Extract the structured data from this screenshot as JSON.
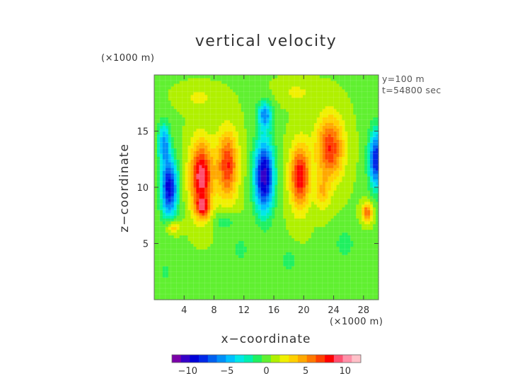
{
  "chart_data": {
    "type": "heatmap",
    "title": "vertical velocity",
    "xlabel": "x−coordinate",
    "ylabel": "z−coordinate",
    "x_unit": "(×1000 m)",
    "y_unit": "(×1000 m)",
    "annotations": [
      "y=100 m",
      "t=54800 sec"
    ],
    "xlim": [
      0,
      30
    ],
    "ylim": [
      0,
      20
    ],
    "x_ticks": [
      4,
      8,
      12,
      16,
      20,
      24,
      28
    ],
    "y_ticks": [
      5,
      10,
      15
    ],
    "colorbar": {
      "range": [
        -12,
        12
      ],
      "ticks": [
        -10,
        -5,
        0,
        5,
        10
      ],
      "tick_labels": [
        "−10",
        "−5",
        "0",
        "5",
        "10"
      ],
      "colors": [
        "#7a00a8",
        "#3500c8",
        "#0000d8",
        "#0028e8",
        "#0060f0",
        "#0090f8",
        "#00c0ff",
        "#00e8e8",
        "#00f0b0",
        "#20f060",
        "#60f030",
        "#b0f000",
        "#f0f000",
        "#ffd000",
        "#ffa800",
        "#ff7800",
        "#ff4000",
        "#ff0000",
        "#ff5070",
        "#ff90a8",
        "#ffc0c8"
      ]
    },
    "field": {
      "background": 0.5,
      "features": [
        {
          "x": 2.0,
          "z": 10.0,
          "sx": 1.1,
          "sz": 2.6,
          "a": -10
        },
        {
          "x": 1.3,
          "z": 14.0,
          "sx": 0.8,
          "sz": 1.8,
          "a": -6
        },
        {
          "x": 6.3,
          "z": 11.0,
          "sx": 1.5,
          "sz": 3.0,
          "a": 9
        },
        {
          "x": 9.8,
          "z": 12.0,
          "sx": 1.4,
          "sz": 3.0,
          "a": 7
        },
        {
          "x": 6.5,
          "z": 8.2,
          "sx": 1.0,
          "sz": 1.0,
          "a": 5
        },
        {
          "x": 14.7,
          "z": 11.0,
          "sx": 1.3,
          "sz": 3.2,
          "a": -11
        },
        {
          "x": 14.8,
          "z": 16.5,
          "sx": 1.0,
          "sz": 1.2,
          "a": -6
        },
        {
          "x": 19.5,
          "z": 11.0,
          "sx": 1.3,
          "sz": 2.8,
          "a": 8
        },
        {
          "x": 23.5,
          "z": 13.5,
          "sx": 1.8,
          "sz": 2.8,
          "a": 7
        },
        {
          "x": 22.5,
          "z": 9.5,
          "sx": 1.0,
          "sz": 1.5,
          "a": 3
        },
        {
          "x": 29.7,
          "z": 12.5,
          "sx": 1.0,
          "sz": 2.6,
          "a": -9
        },
        {
          "x": 28.5,
          "z": 7.8,
          "sx": 0.7,
          "sz": 0.8,
          "a": 6
        },
        {
          "x": 2.5,
          "z": 6.5,
          "sx": 0.9,
          "sz": 0.6,
          "a": 4
        },
        {
          "x": 9.5,
          "z": 7.0,
          "sx": 1.6,
          "sz": 0.8,
          "a": -2
        },
        {
          "x": 11.5,
          "z": 4.5,
          "sx": 1.0,
          "sz": 1.0,
          "a": -1.8
        },
        {
          "x": 18.0,
          "z": 3.5,
          "sx": 1.2,
          "sz": 1.0,
          "a": -1.8
        },
        {
          "x": 25.5,
          "z": 5.0,
          "sx": 1.5,
          "sz": 1.5,
          "a": -1.6
        },
        {
          "x": 6.0,
          "z": 18.0,
          "sx": 2.5,
          "sz": 1.0,
          "a": 1.5
        },
        {
          "x": 19.0,
          "z": 18.5,
          "sx": 2.5,
          "sz": 1.0,
          "a": 1.5
        },
        {
          "x": 1.5,
          "z": 2.5,
          "sx": 0.6,
          "sz": 0.7,
          "a": -2.5
        }
      ]
    }
  }
}
